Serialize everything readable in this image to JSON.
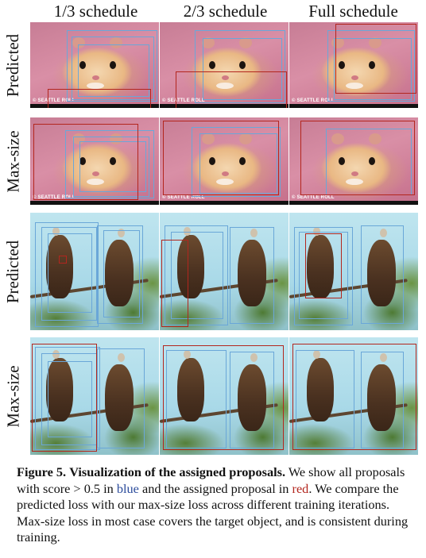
{
  "column_headers": [
    "1/3 schedule",
    "2/3 schedule",
    "Full schedule"
  ],
  "row_labels": [
    "Predicted",
    "Max-size",
    "Predicted",
    "Max-size"
  ],
  "watermark": "SEATTLE ROLL",
  "colors": {
    "proposal_box": "#6aa7d8",
    "assigned_box": "#b3261e",
    "caption_blue": "#2b4b9b",
    "caption_red": "#b3261e"
  },
  "caption": {
    "figure_label": "Figure 5.",
    "title": "Visualization of the assigned proposals.",
    "text_1": "We show all proposals with score > 0.5 in",
    "blue_word": "blue",
    "text_2": "and the assigned proposal in",
    "red_word": "red",
    "text_3": ". We compare the predicted loss with our max-size loss across different training iterations. Max-size loss in most case covers the target object, and is consistent during training."
  }
}
